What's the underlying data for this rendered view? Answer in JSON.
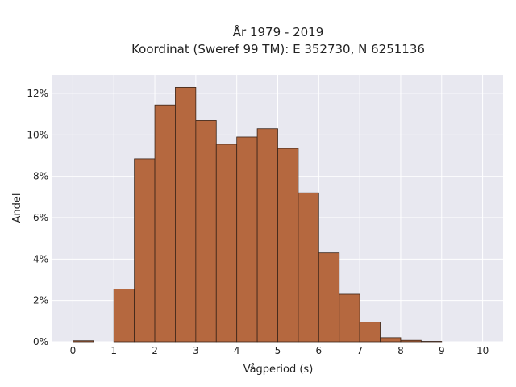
{
  "chart_data": {
    "type": "bar",
    "title_line1": "År 1979 - 2019",
    "title_line2": "Koordinat (Sweref 99 TM): E 352730, N 6251136",
    "xlabel": "Vågperiod (s)",
    "ylabel": "Andel",
    "xlim": [
      -0.5,
      10.5
    ],
    "ylim": [
      0,
      12.9
    ],
    "x_ticks": [
      "0",
      "1",
      "2",
      "3",
      "4",
      "5",
      "6",
      "7",
      "8",
      "9",
      "10"
    ],
    "y_ticks": [
      "0%",
      "2%",
      "4%",
      "6%",
      "8%",
      "10%",
      "12%"
    ],
    "bin_width": 0.5,
    "bins_start": [
      0,
      0.5,
      1,
      1.5,
      2,
      2.5,
      3,
      3.5,
      4,
      4.5,
      5,
      5.5,
      6,
      6.5,
      7,
      7.5,
      8,
      8.5,
      9,
      9.5
    ],
    "values": [
      0.05,
      0,
      2.55,
      8.85,
      11.45,
      12.3,
      10.7,
      9.55,
      9.9,
      10.3,
      9.35,
      7.2,
      4.3,
      2.3,
      0.95,
      0.2,
      0.07,
      0.02,
      0,
      0
    ],
    "grid": true,
    "bar_color": "#b5683f",
    "bar_edge_color": "#3a2418",
    "background_color": "#e8e8f0"
  }
}
